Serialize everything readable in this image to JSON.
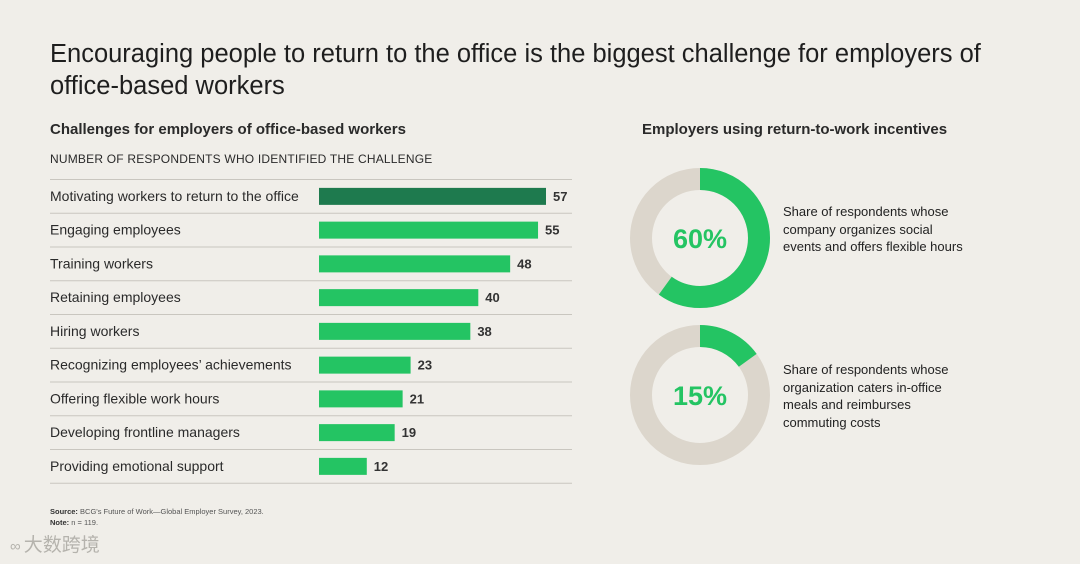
{
  "title": "Encouraging people to return to the office is the biggest challenge for employers of office-based workers",
  "left_panel": {
    "subtitle": "Challenges for employers of office-based workers",
    "caption": "NUMBER OF RESPONDENTS WHO IDENTIFIED THE CHALLENGE"
  },
  "right_panel": {
    "subtitle": "Employers using return-to-work incentives",
    "donuts": [
      {
        "label": "60%",
        "value": 60,
        "description": "Share of respondents whose company organizes social events and offers flexible hours"
      },
      {
        "label": "15%",
        "value": 15,
        "description": "Share of respondents whose organization caters in-office meals and reimburses commuting costs"
      }
    ]
  },
  "footer": {
    "source_label": "Source:",
    "source_text": "BCG's Future of Work—Global Employer Survey, 2023.",
    "note_label": "Note:",
    "note_text": "n = 119."
  },
  "watermark": "大数跨境",
  "colors": {
    "highlight_bar": "#1e7a4e",
    "bar": "#24c463",
    "donut_fill": "#24c463",
    "donut_track": "#dcd6cc",
    "background": "#f0eee9",
    "divider": "#c9c6bf"
  },
  "chart_data": [
    {
      "type": "bar",
      "orientation": "horizontal",
      "title": "Challenges for employers of office-based workers",
      "xlabel": "NUMBER OF RESPONDENTS WHO IDENTIFIED THE CHALLENGE",
      "xlim": [
        0,
        57
      ],
      "grid": false,
      "categories": [
        "Motivating workers to return to the office",
        "Engaging employees",
        "Training workers",
        "Retaining employees",
        "Hiring workers",
        "Recognizing employees’ achievements",
        "Offering flexible work hours",
        "Developing frontline managers",
        "Providing emotional support"
      ],
      "values": [
        57,
        55,
        48,
        40,
        38,
        23,
        21,
        19,
        12
      ],
      "highlighted_index": 0
    },
    {
      "type": "pie",
      "variant": "donut",
      "title": "Employers using return-to-work incentives",
      "values": [
        60,
        40
      ],
      "center_label": "60%"
    },
    {
      "type": "pie",
      "variant": "donut",
      "title": "Employers using return-to-work incentives",
      "values": [
        15,
        85
      ],
      "center_label": "15%"
    }
  ]
}
